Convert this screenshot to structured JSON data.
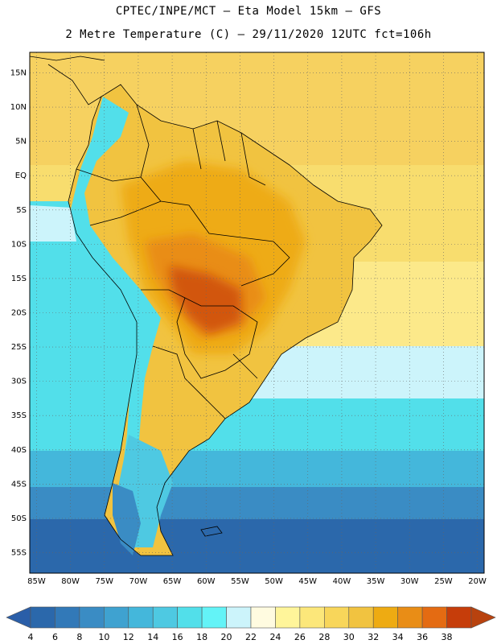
{
  "header": {
    "line1": "CPTEC/INPE/MCT –  Eta Model 15km – GFS",
    "line2": "2 Metre Temperature (C) – 29/11/2020 12UTC fct=106h"
  },
  "axes": {
    "lat_labels": [
      "15N",
      "10N",
      "5N",
      "EQ",
      "5S",
      "10S",
      "15S",
      "20S",
      "25S",
      "30S",
      "35S",
      "40S",
      "45S",
      "50S",
      "55S"
    ],
    "lat_values": [
      15,
      10,
      5,
      0,
      -5,
      -10,
      -15,
      -20,
      -25,
      -30,
      -35,
      -40,
      -45,
      -50,
      -55
    ],
    "lon_labels": [
      "85W",
      "80W",
      "75W",
      "70W",
      "65W",
      "60W",
      "55W",
      "50W",
      "45W",
      "40W",
      "35W",
      "30W",
      "25W",
      "20W"
    ],
    "lon_values": [
      -85,
      -80,
      -75,
      -70,
      -65,
      -60,
      -55,
      -50,
      -45,
      -40,
      -35,
      -30,
      -25,
      -20
    ],
    "lat_range": [
      -58,
      18
    ],
    "lon_range": [
      -86,
      -19
    ]
  },
  "colorbar": {
    "labels": [
      "4",
      "6",
      "8",
      "10",
      "12",
      "14",
      "16",
      "18",
      "20",
      "22",
      "24",
      "26",
      "28",
      "30",
      "32",
      "34",
      "36",
      "38"
    ],
    "colors": [
      "#2b68ab",
      "#3279b8",
      "#3a8cc4",
      "#3fa2d0",
      "#44b7db",
      "#4ec9e2",
      "#52dfea",
      "#63f3f7",
      "#ccf4fb",
      "#fffbe0",
      "#fff59a",
      "#fce77a",
      "#f8d65a",
      "#f1c340",
      "#eeab12",
      "#e98d16",
      "#e46b12",
      "#c63d0a"
    ],
    "low_end_color": "#2a5ea8",
    "high_end_color": "#b8420e"
  },
  "field": {
    "ocean_colors": {
      "north_warm": "#f6d160",
      "tropic_warm": "#f8dd6e",
      "subtropic": "#fce98a",
      "pale": "#ccf4fb",
      "cool": "#52dfea",
      "cooler": "#44b7db",
      "cold": "#3a8cc4",
      "coldest": "#2b68ab"
    },
    "land_colors": {
      "warm": "#f1c340",
      "hot": "#eeab12",
      "hotter": "#e98d16",
      "hottest": "#d2560c",
      "andes": "#52dfea",
      "andes_cold": "#3a8cc4",
      "patagonia": "#4ec9e2"
    }
  }
}
